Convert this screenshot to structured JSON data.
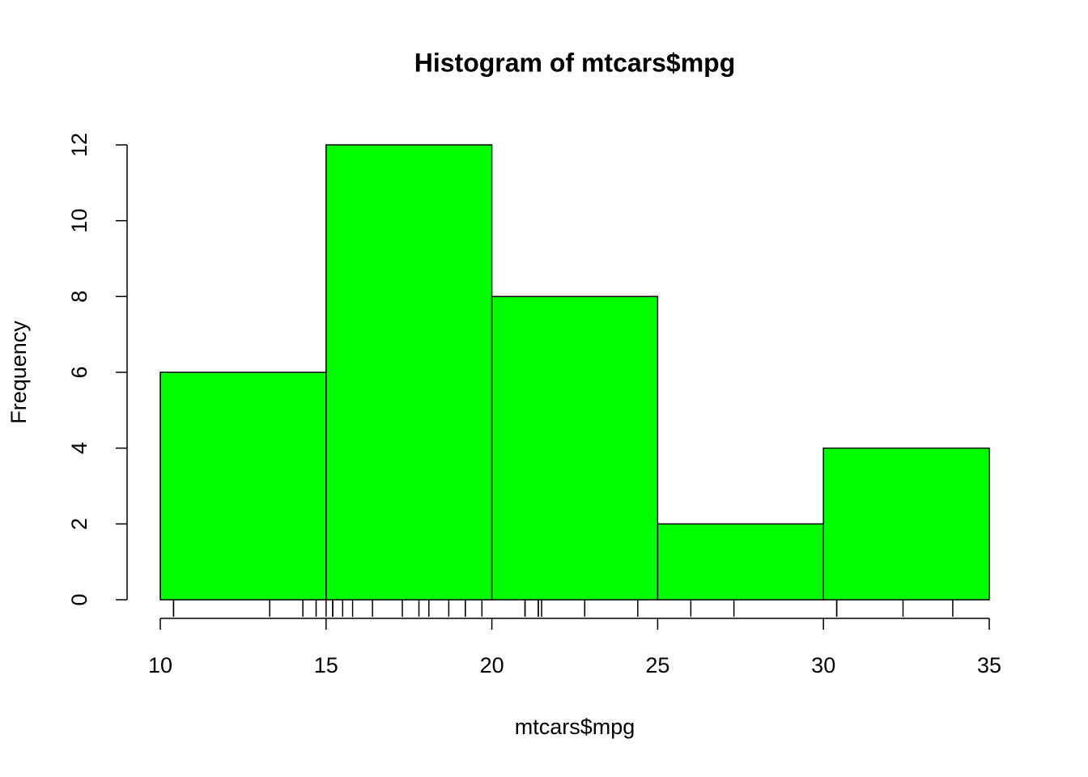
{
  "chart_data": {
    "type": "histogram",
    "title": "Histogram of mtcars$mpg",
    "x_label": "mtcars$mpg",
    "y_label": "Frequency",
    "bins": [
      10,
      15,
      20,
      25,
      30,
      35
    ],
    "values": [
      6,
      12,
      8,
      2,
      4
    ],
    "color": "#00ff00",
    "rug": [
      21.0,
      21.0,
      22.8,
      21.4,
      18.7,
      18.1,
      14.3,
      24.4,
      22.8,
      19.2,
      17.8,
      16.4,
      17.3,
      15.2,
      10.4,
      10.4,
      14.7,
      32.4,
      30.4,
      33.9,
      21.5,
      15.5,
      15.2,
      13.3,
      19.2,
      27.3,
      26.0,
      30.4,
      15.8,
      19.7,
      15.0,
      21.4
    ],
    "xlim": [
      10,
      35
    ],
    "xticks": [
      10,
      15,
      20,
      25,
      30,
      35
    ],
    "ylim": [
      0,
      12
    ],
    "yticks": [
      0,
      2,
      4,
      6,
      8,
      10,
      12
    ]
  }
}
